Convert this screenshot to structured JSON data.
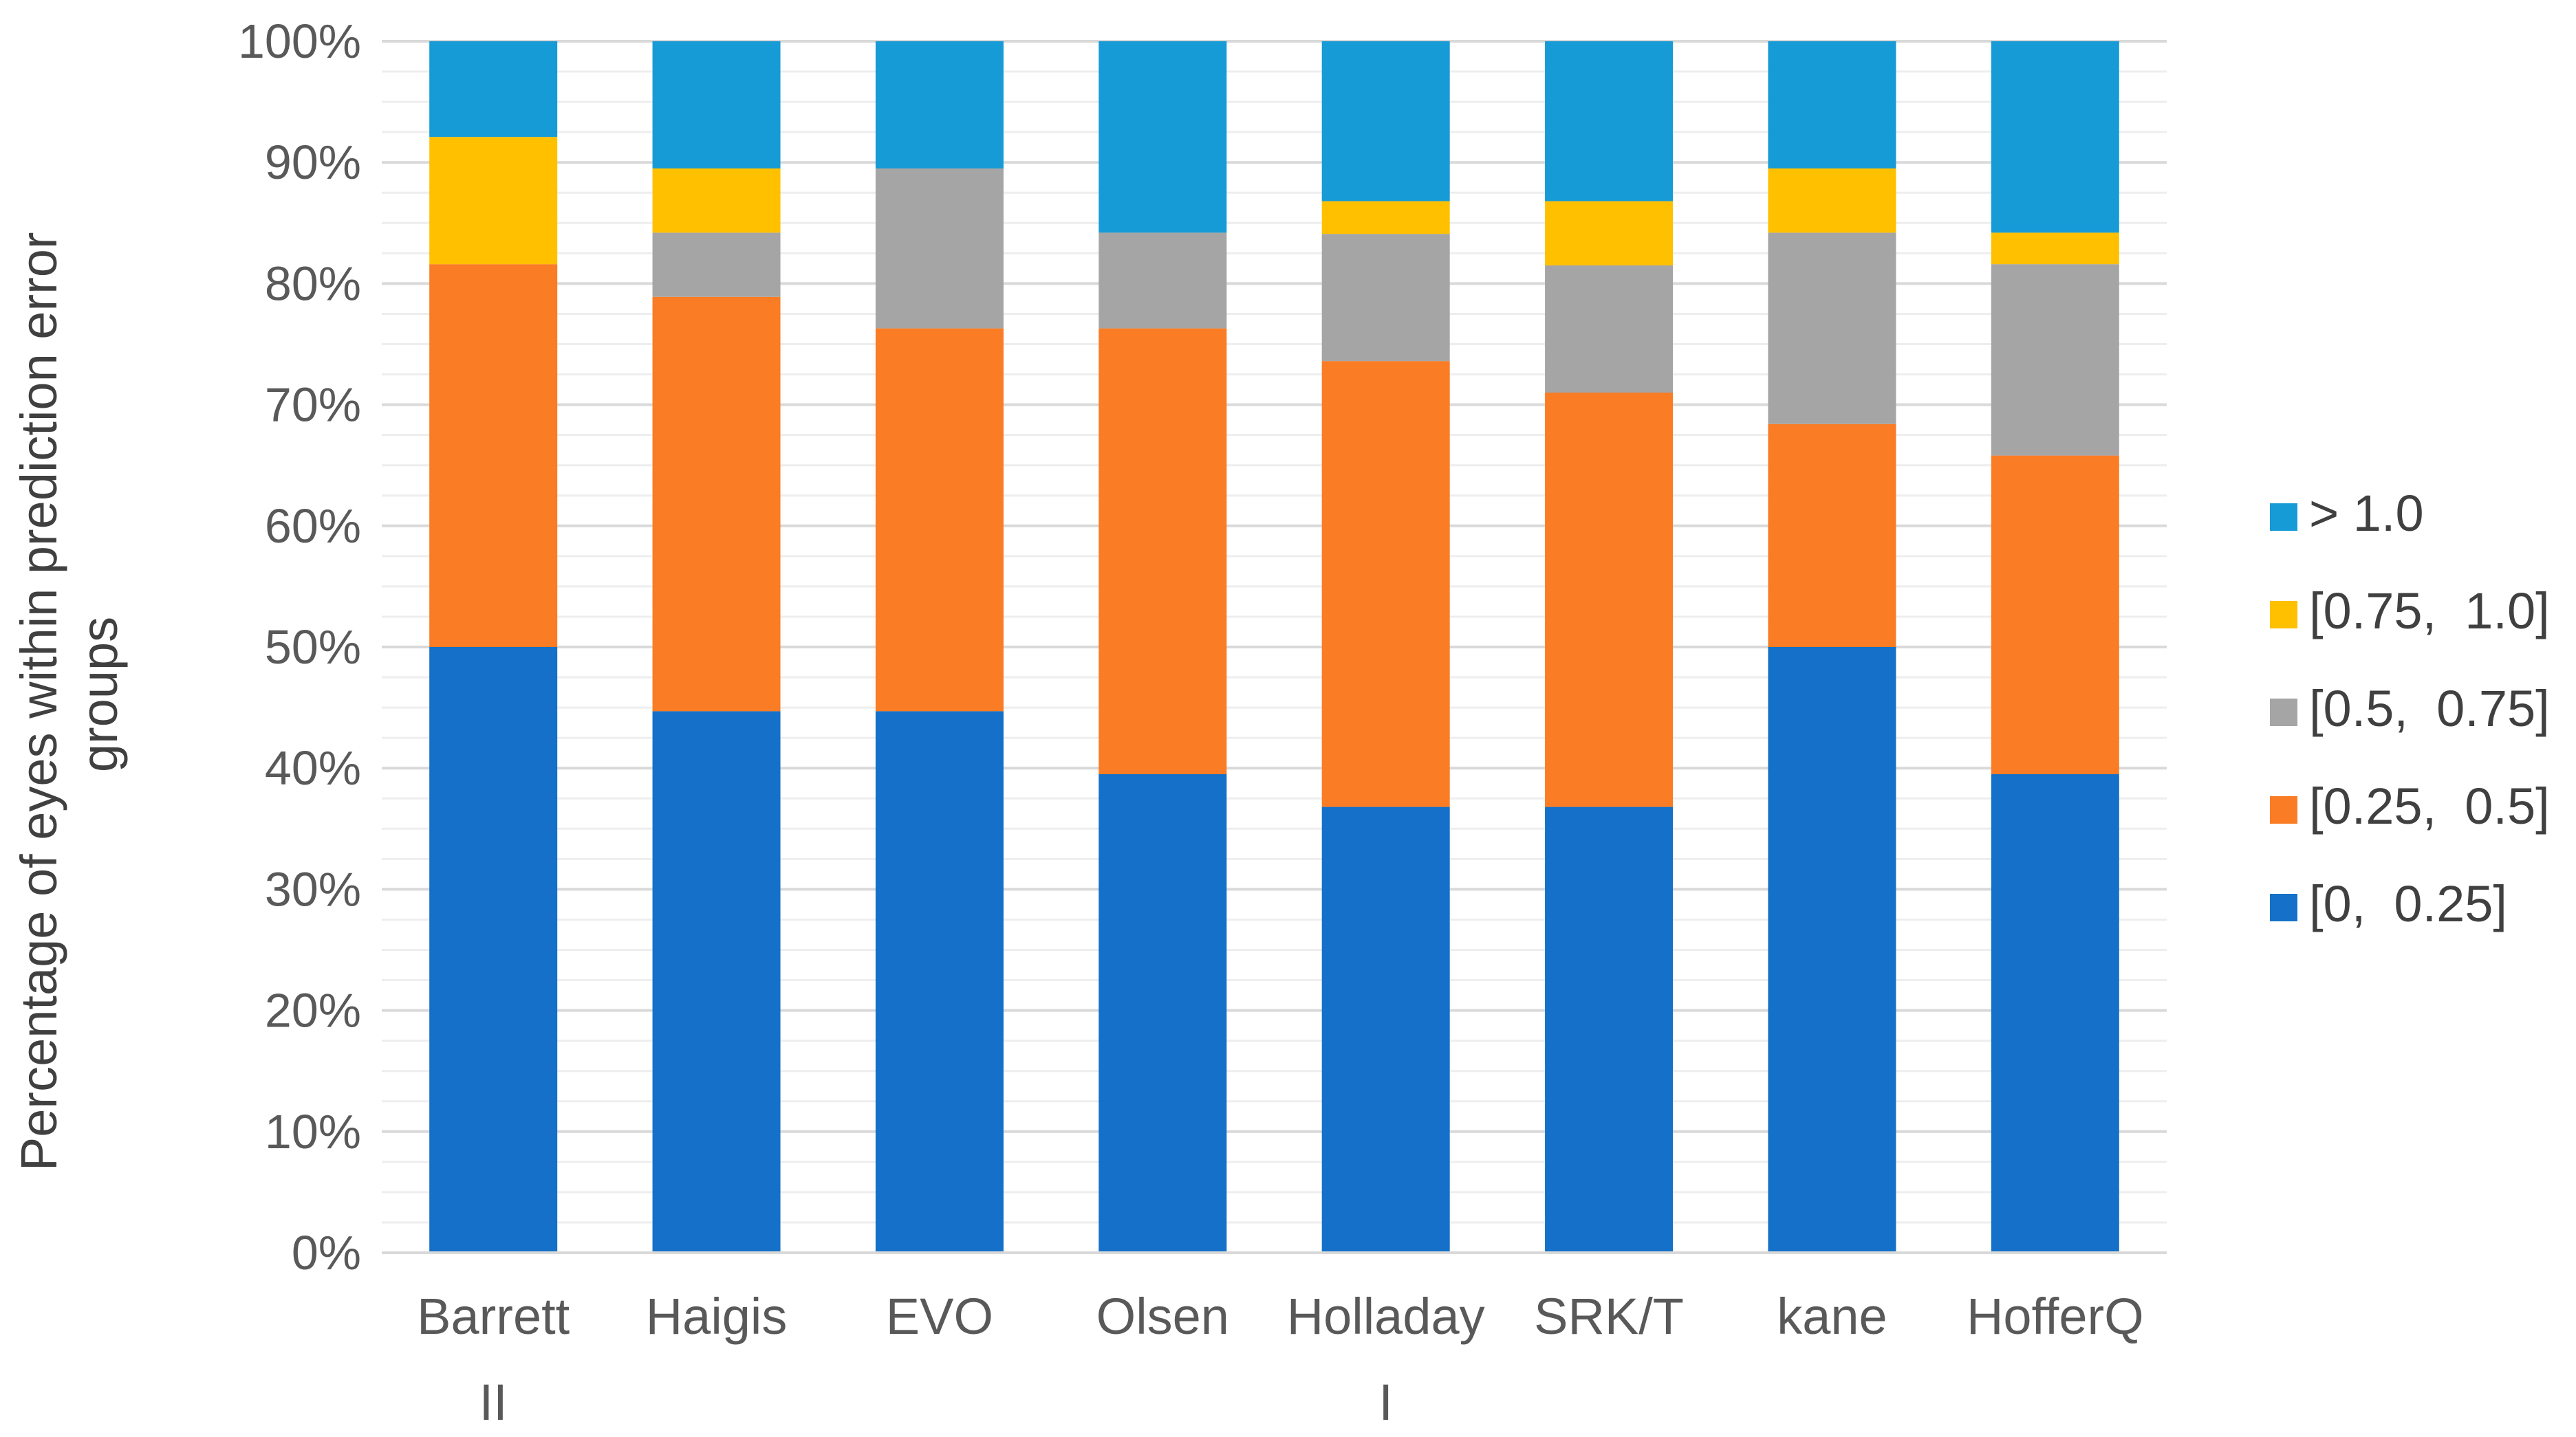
{
  "chart_data": {
    "type": "bar",
    "stacked": true,
    "title": "",
    "xlabel": "",
    "ylabel_lines": [
      "Percentage of eyes within prediction error",
      "groups"
    ],
    "ylim": [
      0,
      100
    ],
    "ytick_values": [
      0,
      10,
      20,
      30,
      40,
      50,
      60,
      70,
      80,
      90,
      100
    ],
    "ytick_labels": [
      "0%",
      "10%",
      "20%",
      "30%",
      "40%",
      "50%",
      "60%",
      "70%",
      "80%",
      "90%",
      "100%"
    ],
    "gridlines": "major and minor horizontal",
    "legend_position": "right",
    "categories": [
      [
        "Barrett",
        "II"
      ],
      [
        "Haigis"
      ],
      [
        "EVO"
      ],
      [
        "Olsen"
      ],
      [
        "Holladay",
        "I"
      ],
      [
        "SRK/T"
      ],
      [
        "kane"
      ],
      [
        "HofferQ"
      ]
    ],
    "series": [
      {
        "name": "[0,  0.25]",
        "color": "#1470C8",
        "values": [
          50.0,
          44.7,
          44.7,
          39.5,
          36.8,
          36.8,
          50.0,
          39.5
        ]
      },
      {
        "name": "[0.25,  0.5]",
        "color": "#FA7C24",
        "values": [
          31.6,
          34.2,
          31.6,
          36.8,
          36.8,
          34.2,
          18.4,
          26.3
        ]
      },
      {
        "name": "[0.5,  0.75]",
        "color": "#A5A5A5",
        "values": [
          0.0,
          5.3,
          13.2,
          7.9,
          10.5,
          10.5,
          15.8,
          15.8
        ]
      },
      {
        "name": "[0.75,  1.0]",
        "color": "#FFC000",
        "values": [
          10.5,
          5.3,
          0.0,
          0.0,
          2.7,
          5.3,
          5.3,
          2.6
        ]
      },
      {
        "name": "> 1.0",
        "color": "#169BD6",
        "values": [
          7.9,
          10.5,
          10.5,
          15.8,
          13.2,
          13.2,
          10.5,
          15.8
        ]
      }
    ],
    "legend_order": [
      "> 1.0",
      "[0.75,  1.0]",
      "[0.5,  0.75]",
      "[0.25,  0.5]",
      "[0,  0.25]"
    ]
  }
}
